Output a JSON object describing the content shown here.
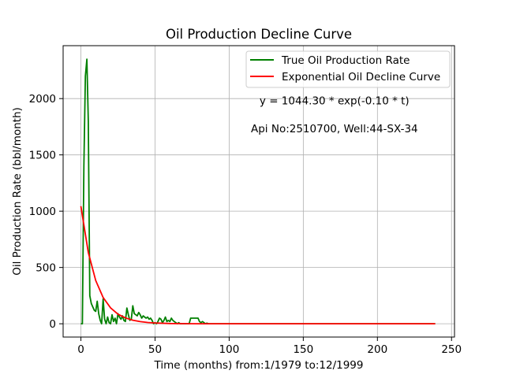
{
  "chart_data": {
    "type": "line",
    "title": "Oil Production Decline Curve",
    "xlabel": "Time (months) from:1/1979 to:12/1999",
    "ylabel": "Oil Production Rate (bbl/month)",
    "xlim": [
      -12,
      252
    ],
    "ylim": [
      -118,
      2470
    ],
    "xticks": [
      0,
      50,
      100,
      150,
      200,
      250
    ],
    "yticks": [
      0,
      500,
      1000,
      1500,
      2000
    ],
    "grid": true,
    "legend_position": "top-right",
    "colors": {
      "true_rate": "#008000",
      "decline_curve": "#ff0000",
      "grid": "#b0b0b0"
    },
    "annotations": [
      {
        "text": "y = 1044.30 * exp(-0.10 * t)",
        "x": 171,
        "y": 1950
      },
      {
        "text": "Api No:2510700, Well:44-SX-34",
        "x": 171,
        "y": 1700
      }
    ],
    "series": [
      {
        "name": "True Oil Production Rate",
        "color": "#008000",
        "x": [
          0,
          1,
          2,
          3,
          4,
          5,
          6,
          7,
          8,
          9,
          10,
          11,
          12,
          13,
          14,
          15,
          16,
          17,
          18,
          19,
          20,
          21,
          22,
          23,
          24,
          25,
          26,
          27,
          28,
          29,
          30,
          31,
          32,
          33,
          34,
          35,
          36,
          37,
          38,
          39,
          40,
          41,
          42,
          43,
          44,
          45,
          46,
          47,
          48,
          49,
          50,
          51,
          52,
          53,
          54,
          55,
          56,
          57,
          58,
          59,
          60,
          61,
          62,
          63,
          64,
          65,
          66,
          67,
          68,
          69,
          70,
          71,
          72,
          73,
          74,
          75,
          76,
          77,
          78,
          79,
          80,
          81,
          82,
          83,
          84,
          85,
          86,
          90,
          100,
          120,
          150,
          180,
          200,
          220,
          239
        ],
        "y": [
          0,
          0,
          1400,
          2200,
          2350,
          1800,
          250,
          180,
          150,
          120,
          110,
          200,
          90,
          30,
          0,
          220,
          40,
          0,
          60,
          10,
          0,
          80,
          20,
          50,
          0,
          90,
          60,
          40,
          70,
          30,
          20,
          140,
          80,
          30,
          40,
          160,
          90,
          80,
          70,
          100,
          80,
          50,
          70,
          60,
          50,
          60,
          40,
          50,
          30,
          0,
          10,
          0,
          20,
          50,
          40,
          10,
          30,
          60,
          20,
          30,
          20,
          50,
          30,
          20,
          10,
          0,
          10,
          0,
          0,
          0,
          0,
          0,
          0,
          0,
          50,
          50,
          50,
          50,
          50,
          50,
          20,
          10,
          20,
          10,
          0,
          5,
          0,
          0,
          0,
          0,
          0,
          0,
          0,
          0,
          0
        ]
      },
      {
        "name": "Exponential Oil Decline Curve",
        "color": "#ff0000",
        "function": "y = 1044.30 * exp(-0.10 * t)",
        "x": [
          0,
          5,
          10,
          15,
          20,
          25,
          30,
          35,
          40,
          45,
          50,
          60,
          70,
          80,
          90,
          100,
          120,
          150,
          180,
          200,
          220,
          239
        ],
        "y": [
          1044.3,
          633.4,
          384.2,
          233.0,
          141.3,
          85.7,
          52.0,
          31.5,
          19.1,
          11.6,
          7.0,
          2.6,
          0.95,
          0.35,
          0.13,
          0.05,
          0.0,
          0.0,
          0.0,
          0.0,
          0.0,
          0.0
        ]
      }
    ]
  }
}
